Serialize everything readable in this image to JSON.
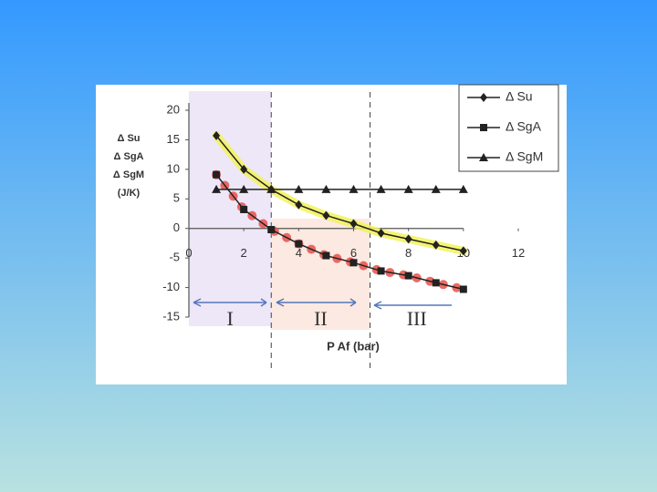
{
  "chart_data": {
    "type": "line",
    "ylabel": [
      "Δ Su",
      "Δ SgA",
      "Δ SgM",
      "(J/K)"
    ],
    "xlabel": "P Af (bar)",
    "x": [
      1,
      2,
      3,
      4,
      5,
      6,
      7,
      8,
      9,
      10
    ],
    "series": [
      {
        "name": "Δ Su",
        "color": "#222222",
        "marker": "diamond",
        "highlight": "#f2f25a",
        "values": [
          15.7,
          10,
          6.6,
          4,
          2.2,
          0.8,
          -0.8,
          -1.8,
          -2.8,
          -3.8
        ]
      },
      {
        "name": "Δ SgA",
        "color": "#222222",
        "marker": "square",
        "highlight": "#e8504a",
        "values": [
          9.1,
          3.2,
          -0.2,
          -2.6,
          -4.6,
          -5.8,
          -7.2,
          -8,
          -9.2,
          -10.3
        ]
      },
      {
        "name": "Δ SgM",
        "color": "#222222",
        "marker": "triangle",
        "values": [
          6.6,
          6.6,
          6.6,
          6.6,
          6.6,
          6.6,
          6.6,
          6.6,
          6.6,
          6.6
        ]
      }
    ],
    "xlim": [
      0,
      12
    ],
    "xticks": [
      0,
      2,
      4,
      6,
      8,
      10,
      12
    ],
    "ylim": [
      -15,
      20
    ],
    "yticks": [
      -15,
      -10,
      -5,
      0,
      5,
      10,
      15,
      20
    ],
    "dividers": [
      3,
      6.6
    ],
    "regions": [
      "I",
      "II",
      "III"
    ],
    "legend": "top-right"
  }
}
